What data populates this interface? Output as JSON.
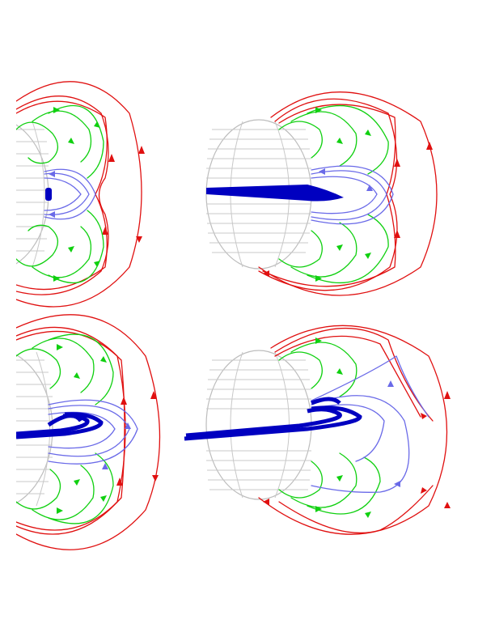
{
  "colors": {
    "background": "#ffffff",
    "disk_grid": "#c8c8c8",
    "disk_outline": "#bdbdbd",
    "open_field_lines": "#e01010",
    "closed_field_lines": "#10d010",
    "helmet_field_lines": "#6a6ae8",
    "current_sheet": "#0000c0"
  },
  "panels": [
    {
      "id": "top-left",
      "view": "limb",
      "current_sheet": "compact"
    },
    {
      "id": "top-right",
      "view": "rotated",
      "current_sheet": "elongated"
    },
    {
      "id": "bottom-left",
      "view": "limb",
      "current_sheet": "ring-loops"
    },
    {
      "id": "bottom-right",
      "view": "rotated",
      "current_sheet": "ring-loops-elongated"
    }
  ]
}
